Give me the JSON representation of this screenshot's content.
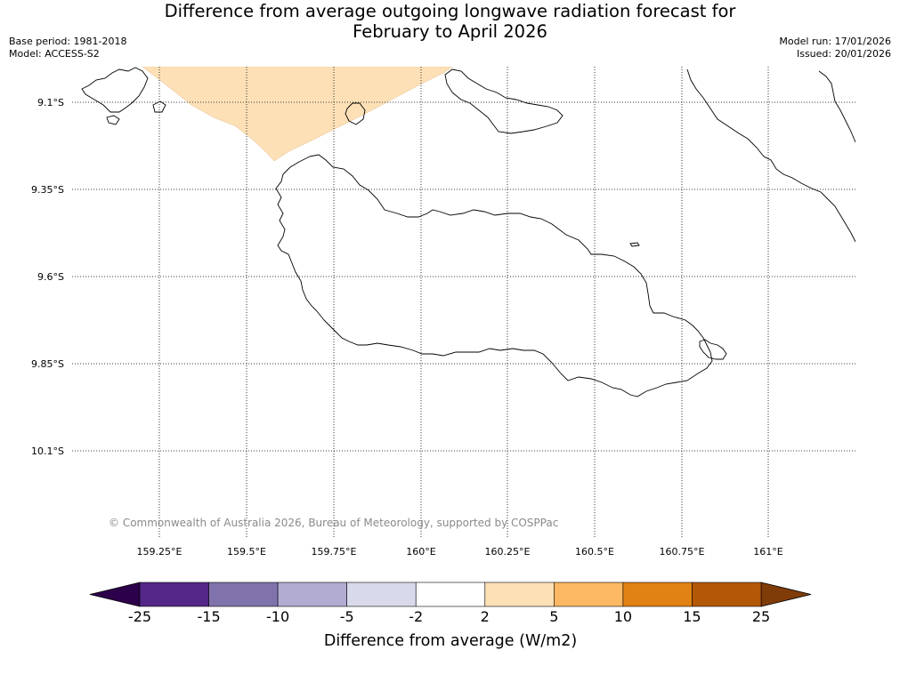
{
  "title": {
    "line1": "Difference from average outgoing longwave radiation forecast for",
    "line2": "February to April 2026"
  },
  "meta_left": {
    "base_period": "Base period: 1981-2018",
    "model": "Model: ACCESS-S2"
  },
  "meta_right": {
    "model_run": "Model run: 17/01/2026",
    "issued": "Issued: 20/01/2026"
  },
  "map": {
    "lat_labels": [
      "9.1°S",
      "9.35°S",
      "9.6°S",
      "9.85°S",
      "10.1°S"
    ],
    "lon_labels": [
      "159.25°E",
      "159.5°E",
      "159.75°E",
      "160°E",
      "160.25°E",
      "160.5°E",
      "160.75°E",
      "161°E"
    ],
    "copyright": "© Commonwealth of Australia 2026, Bureau of Meteorology, supported by COSPPac",
    "anomaly_region": {
      "category": "2 to 5",
      "color": "#fde0b6"
    },
    "colors": {
      "coastline": "#000000",
      "gridline": "#000000"
    }
  },
  "colorbar": {
    "title": "Difference from average (W/m2)",
    "tick_labels": [
      "-25",
      "-15",
      "-10",
      "-5",
      "-2",
      "2",
      "5",
      "10",
      "15",
      "25"
    ],
    "under_color": "#2d004b",
    "over_color": "#7f3b08",
    "bins": [
      {
        "range": "-25 to -15",
        "color": "#542788"
      },
      {
        "range": "-15 to -10",
        "color": "#8073ac"
      },
      {
        "range": "-10 to -5",
        "color": "#b2abd2"
      },
      {
        "range": "-5 to -2",
        "color": "#d8daeb"
      },
      {
        "range": "-2 to 2",
        "color": "#ffffff"
      },
      {
        "range": "2 to 5",
        "color": "#fee0b6"
      },
      {
        "range": "5 to 10",
        "color": "#fdb863"
      },
      {
        "range": "10 to 15",
        "color": "#e08214"
      },
      {
        "range": "15 to 25",
        "color": "#b35806"
      }
    ]
  }
}
